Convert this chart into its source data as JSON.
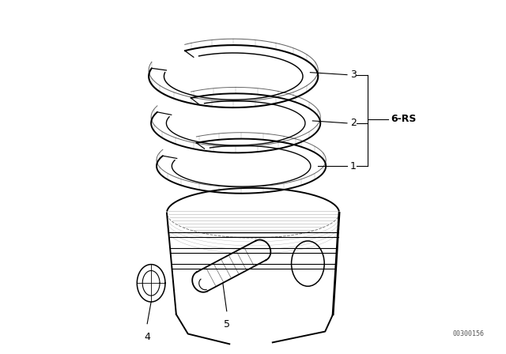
{
  "background_color": "#ffffff",
  "line_color": "#000000",
  "label_6rs": "6-RS",
  "watermark": "00300156",
  "part_numbers": [
    "1",
    "2",
    "3",
    "4",
    "5"
  ]
}
